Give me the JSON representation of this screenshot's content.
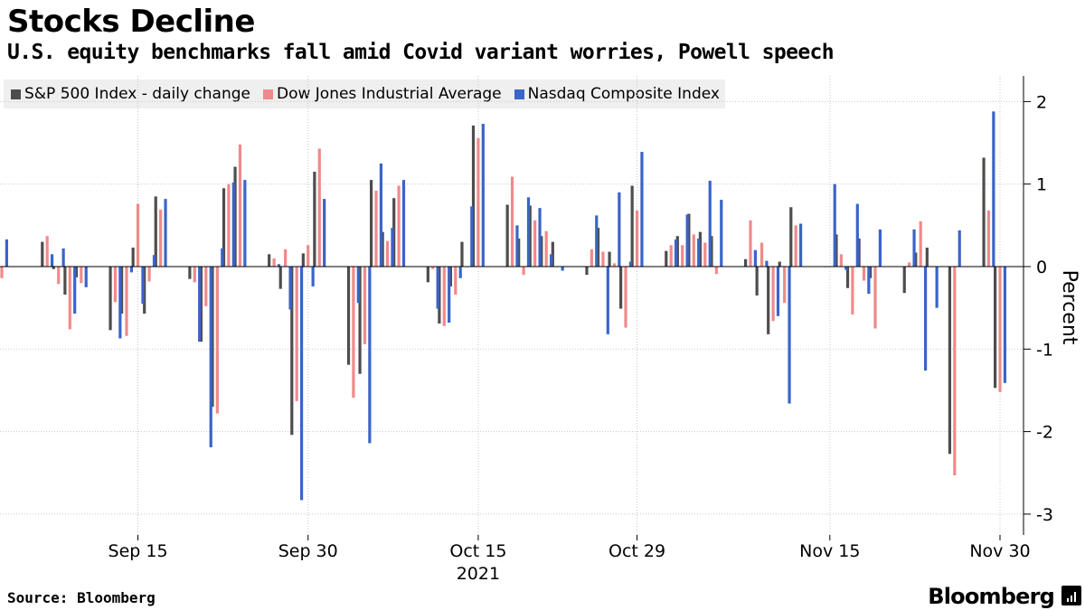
{
  "header": {
    "title": "Stocks Decline",
    "subtitle": "U.S. equity benchmarks fall amid Covid variant worries, Powell speech"
  },
  "footer": {
    "source": "Source: Bloomberg",
    "brand": "Bloomberg",
    "brand_icon": "bloomberg-terminal-icon"
  },
  "colors": {
    "sp500": "#4d4d4d",
    "dow": "#f08a8a",
    "nasdaq": "#3a64c8",
    "legend_bg": "#efefef"
  },
  "chart_data": {
    "type": "bar",
    "title": "Stocks Decline",
    "ylabel": "Percent",
    "ylim": [
      -3.3,
      2.3
    ],
    "yticks": [
      2,
      1,
      0,
      -1,
      -2,
      -3
    ],
    "grid": true,
    "legend_position": "top-left",
    "y_axis_side": "right",
    "x_tick_labels": [
      {
        "date": "2021-09-15",
        "label": "Sep 15"
      },
      {
        "date": "2021-09-30",
        "label": "Sep 30"
      },
      {
        "date": "2021-10-15",
        "label": "Oct 15"
      },
      {
        "date": "2021-10-29",
        "label": "Oct 29"
      },
      {
        "date": "2021-11-15",
        "label": "Nov 15"
      },
      {
        "date": "2021-11-30",
        "label": "Nov 30"
      }
    ],
    "x_year_label": "2021",
    "categories": [
      "2021-09-03",
      "2021-09-07",
      "2021-09-08",
      "2021-09-09",
      "2021-09-10",
      "2021-09-13",
      "2021-09-14",
      "2021-09-15",
      "2021-09-16",
      "2021-09-17",
      "2021-09-20",
      "2021-09-21",
      "2021-09-22",
      "2021-09-23",
      "2021-09-24",
      "2021-09-27",
      "2021-09-28",
      "2021-09-29",
      "2021-09-30",
      "2021-10-01",
      "2021-10-04",
      "2021-10-05",
      "2021-10-06",
      "2021-10-07",
      "2021-10-08",
      "2021-10-11",
      "2021-10-12",
      "2021-10-13",
      "2021-10-14",
      "2021-10-15",
      "2021-10-18",
      "2021-10-19",
      "2021-10-20",
      "2021-10-21",
      "2021-10-22",
      "2021-10-25",
      "2021-10-26",
      "2021-10-27",
      "2021-10-28",
      "2021-10-29",
      "2021-11-01",
      "2021-11-02",
      "2021-11-03",
      "2021-11-04",
      "2021-11-05",
      "2021-11-08",
      "2021-11-09",
      "2021-11-10",
      "2021-11-11",
      "2021-11-12",
      "2021-11-15",
      "2021-11-16",
      "2021-11-17",
      "2021-11-18",
      "2021-11-19",
      "2021-11-22",
      "2021-11-23",
      "2021-11-24",
      "2021-11-26",
      "2021-11-29",
      "2021-11-30"
    ],
    "series": [
      {
        "name": "S&P 500 Index - daily change",
        "key": "sp500",
        "values": [
          0.03,
          0.3,
          -0.03,
          -0.34,
          -0.13,
          -0.77,
          -0.57,
          0.23,
          -0.57,
          0.85,
          -0.15,
          -0.91,
          -1.7,
          0.95,
          1.21,
          0.15,
          -0.27,
          -2.04,
          0.16,
          1.15,
          -1.19,
          -1.3,
          1.05,
          0.42,
          0.83,
          -0.19,
          -0.69,
          -0.24,
          0.3,
          1.71,
          0.75,
          0.34,
          0.74,
          0.37,
          0.3,
          -0.1,
          0.47,
          0.18,
          -0.51,
          0.98,
          0.19,
          0.37,
          0.64,
          0.42,
          0.37,
          0.09,
          -0.35,
          -0.82,
          0.06,
          0.72,
          0.0,
          0.39,
          -0.26,
          0.34,
          -0.14,
          -0.32,
          0.17,
          0.23,
          -2.27,
          1.32,
          -1.47
        ]
      },
      {
        "name": "Dow Jones Industrial Average",
        "key": "dow",
        "values": [
          -0.14,
          0.37,
          -0.21,
          -0.76,
          -0.2,
          -0.43,
          -0.84,
          0.76,
          -0.18,
          0.69,
          -0.19,
          -0.48,
          -1.78,
          1.0,
          1.48,
          0.1,
          0.21,
          -1.63,
          0.26,
          1.43,
          -1.59,
          -0.94,
          0.92,
          0.31,
          0.98,
          -0.03,
          -0.72,
          -0.34,
          0.0,
          1.56,
          1.09,
          -0.1,
          0.56,
          0.43,
          0.0,
          0.21,
          0.18,
          0.04,
          -0.74,
          0.68,
          0.26,
          0.26,
          0.39,
          0.29,
          -0.09,
          0.56,
          0.29,
          -0.66,
          -0.44,
          0.5,
          0.0,
          0.15,
          -0.58,
          -0.17,
          -0.75,
          0.05,
          0.55,
          0.0,
          -2.53,
          0.68,
          -1.52
        ]
      },
      {
        "name": "Nasdaq Composite Index",
        "key": "nasdaq",
        "values": [
          0.33,
          0.15,
          0.22,
          -0.57,
          -0.25,
          -0.87,
          -0.07,
          -0.45,
          0.14,
          0.82,
          -0.91,
          -2.19,
          0.22,
          1.02,
          1.05,
          0.03,
          -0.52,
          -2.83,
          -0.24,
          0.82,
          -0.44,
          -2.14,
          1.25,
          0.47,
          1.05,
          -0.51,
          -0.68,
          -0.14,
          0.73,
          1.73,
          0.5,
          0.84,
          0.71,
          0.15,
          -0.05,
          0.62,
          -0.82,
          0.9,
          0.06,
          1.39,
          0.33,
          0.63,
          0.34,
          1.04,
          0.81,
          0.2,
          0.07,
          -0.6,
          -1.66,
          0.52,
          1.0,
          -0.04,
          0.76,
          -0.33,
          0.45,
          0.45,
          -1.26,
          -0.5,
          0.44,
          1.88,
          -1.41
        ]
      }
    ]
  }
}
